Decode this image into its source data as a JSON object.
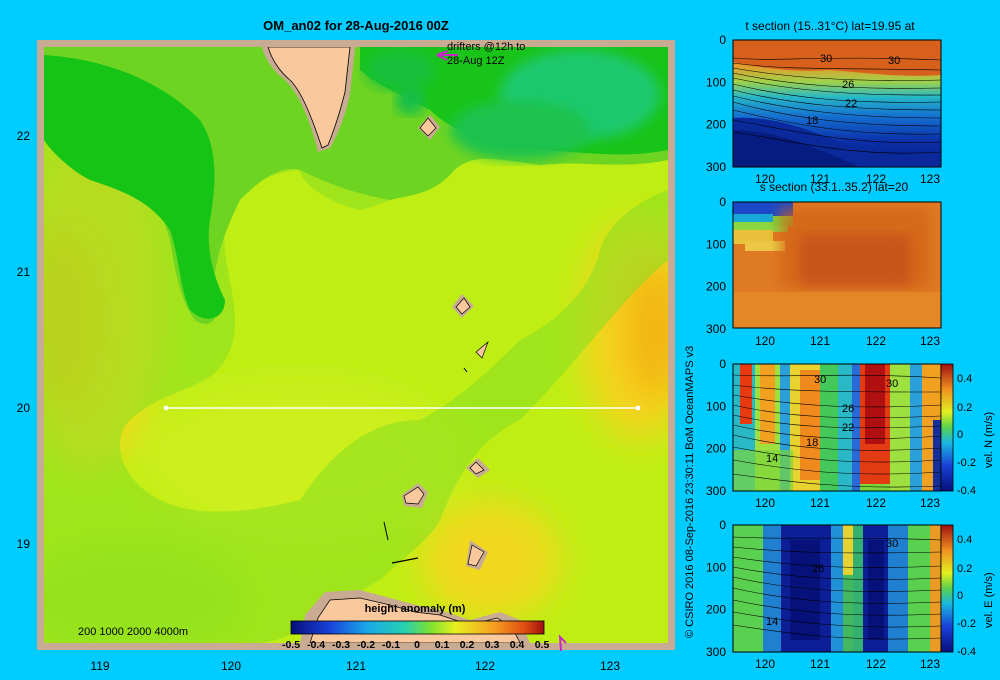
{
  "colors": {
    "background": "#00ccff",
    "land": "#f9c99d",
    "shelf": "#c8ab92",
    "section_line": "#ffffff",
    "drifter": "#cc22cc"
  },
  "map": {
    "title": "OM_an02 for 28-Aug-2016 00Z",
    "drifter_note": [
      "drifters @12h to",
      "28-Aug 12Z"
    ],
    "depth_legend": "200  1000  2000  4000m",
    "x_ticks": [
      "119",
      "120",
      "121",
      "122",
      "123"
    ],
    "y_ticks": [
      "22",
      "21",
      "20",
      "19"
    ],
    "colorbar_title": "height anomaly  (m)",
    "colorbar_ticks": [
      "-0.5",
      "-0.4",
      "-0.3",
      "-0.2",
      "-0.1",
      "0",
      "0.1",
      "0.2",
      "0.3",
      "0.4",
      "0.5"
    ]
  },
  "credit": "© CSIRO 2016   08-Sep-2016 23:30:11 BoM OceanMAPS v3",
  "panels": [
    {
      "title": "t section (15..31°C) lat=19.95 at",
      "ylabel": "",
      "contours": [
        "30",
        "30",
        "26",
        "22",
        "18"
      ]
    },
    {
      "title": "s section (33.1..35.2) lat=20",
      "ylabel": "",
      "contours": []
    },
    {
      "title": "",
      "ylabel": "vel. N  (m/s)",
      "contours": [
        "30",
        "30",
        "26",
        "22",
        "18",
        "14"
      ],
      "cbar_ticks": [
        "0.4",
        "0.2",
        "0",
        "-0.2",
        "-0.4"
      ]
    },
    {
      "title": "",
      "ylabel": "vel. E  (m/s)",
      "contours": [
        "30",
        "26",
        "14"
      ],
      "cbar_ticks": [
        "0.4",
        "0.2",
        "0",
        "-0.2",
        "-0.4"
      ]
    }
  ],
  "section_axes": {
    "x_ticks": [
      "120",
      "121",
      "122",
      "123"
    ],
    "y_ticks": [
      "0",
      "100",
      "200",
      "300"
    ]
  },
  "chart_data": [
    {
      "type": "heatmap",
      "title": "OM_an02 for 28-Aug-2016 00Z",
      "xlabel": "",
      "ylabel": "",
      "xlim": [
        118.5,
        123.5
      ],
      "ylim": [
        18.3,
        22.7
      ],
      "x_ticks": [
        119,
        120,
        121,
        122,
        123
      ],
      "y_ticks": [
        19,
        20,
        21,
        22
      ],
      "colorbar_label": "height anomaly  (m)",
      "clim": [
        -0.5,
        0.5
      ],
      "field": [
        {
          "x": 119.3,
          "y": 22.0,
          "value": 0.02
        },
        {
          "x": 120.0,
          "y": 21.8,
          "value": 0.0
        },
        {
          "x": 120.3,
          "y": 21.3,
          "value": 0.03
        },
        {
          "x": 119.1,
          "y": 21.5,
          "value": 0.03
        },
        {
          "x": 121.8,
          "y": 22.2,
          "value": 0.02
        },
        {
          "x": 122.5,
          "y": 22.1,
          "value": -0.02
        },
        {
          "x": 121.2,
          "y": 20.8,
          "value": 0.1
        },
        {
          "x": 119.6,
          "y": 20.5,
          "value": 0.14
        },
        {
          "x": 118.8,
          "y": 20.6,
          "value": 0.2
        },
        {
          "x": 123.2,
          "y": 20.6,
          "value": 0.2
        },
        {
          "x": 122.7,
          "y": 19.2,
          "value": 0.18
        },
        {
          "x": 121.0,
          "y": 19.6,
          "value": 0.09
        },
        {
          "x": 119.6,
          "y": 19.3,
          "value": 0.05
        }
      ],
      "section_line": {
        "x": [
          119.5,
          123.2
        ],
        "y": [
          20.0,
          20.0
        ]
      }
    },
    {
      "type": "heatmap",
      "title": "t section (15..31°C) lat=19.95 at",
      "xlim": [
        119.5,
        123.25
      ],
      "ylim": [
        300,
        0
      ],
      "clim": [
        15,
        31
      ],
      "contour_labels": [
        30,
        30,
        26,
        22,
        18
      ]
    },
    {
      "type": "heatmap",
      "title": "s section (33.1..35.2) lat=20",
      "xlim": [
        119.5,
        123.25
      ],
      "ylim": [
        300,
        0
      ],
      "clim": [
        33.1,
        35.2
      ]
    },
    {
      "type": "heatmap",
      "ylabel": "vel. N  (m/s)",
      "xlim": [
        119.5,
        123.25
      ],
      "ylim": [
        300,
        0
      ],
      "clim": [
        -0.4,
        0.4
      ],
      "contour_labels": [
        30,
        30,
        26,
        22,
        18,
        14
      ]
    },
    {
      "type": "heatmap",
      "ylabel": "vel. E  (m/s)",
      "xlim": [
        119.5,
        123.25
      ],
      "ylim": [
        300,
        0
      ],
      "clim": [
        -0.4,
        0.4
      ],
      "contour_labels": [
        30,
        26,
        14
      ]
    }
  ]
}
